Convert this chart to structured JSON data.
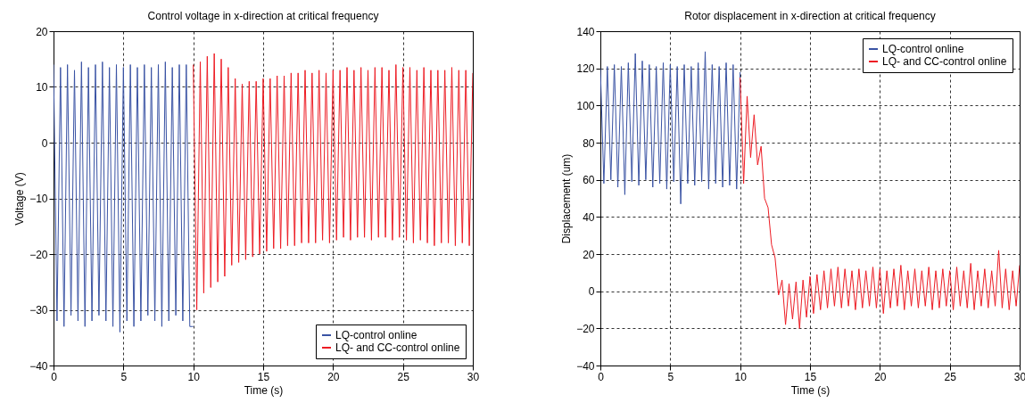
{
  "chart_data": [
    {
      "type": "line",
      "title": "Control voltage in x-direction at critical frequency",
      "xlabel": "Time (s)",
      "ylabel": "Voltage (V)",
      "xlim": [
        0,
        30
      ],
      "xticks": [
        0,
        5,
        10,
        15,
        20,
        25,
        30
      ],
      "ylim": [
        -40,
        20
      ],
      "yticks": [
        -40,
        -30,
        -20,
        -10,
        0,
        10,
        20
      ],
      "grid": true,
      "legend": "bottom right",
      "series": [
        {
          "name": "LQ-control online",
          "color": "#3a53a4",
          "x": [
            0,
            0.25,
            0.5,
            0.75,
            1,
            1.25,
            1.5,
            1.75,
            2,
            2.25,
            2.5,
            2.75,
            3,
            3.25,
            3.5,
            3.75,
            4,
            4.25,
            4.5,
            4.75,
            5,
            5.25,
            5.5,
            5.75,
            6,
            6.25,
            6.5,
            6.75,
            7,
            7.25,
            7.5,
            7.75,
            8,
            8.25,
            8.5,
            8.75,
            9,
            9.25,
            9.5,
            9.75,
            10
          ],
          "values": [
            14,
            -32,
            13.5,
            -33,
            14,
            -31,
            13,
            -32,
            14.5,
            -33,
            13.5,
            -32,
            14,
            -31,
            14.5,
            -32,
            13.5,
            -33,
            14,
            -34,
            13.5,
            -32,
            14,
            -33,
            13.5,
            -32,
            14,
            -31,
            13.5,
            -32,
            14,
            -33,
            14.5,
            -32,
            13.5,
            -31,
            14,
            -32,
            14,
            -33,
            -33
          ]
        },
        {
          "name": "LQ- and CC-control online",
          "color": "#ed1c24",
          "x": [
            10,
            10.25,
            10.5,
            10.75,
            11,
            11.25,
            11.5,
            11.75,
            12,
            12.25,
            12.5,
            12.75,
            13,
            13.25,
            13.5,
            13.75,
            14,
            14.25,
            14.5,
            14.75,
            15,
            15.25,
            15.5,
            15.75,
            16,
            16.25,
            16.5,
            16.75,
            17,
            17.25,
            17.5,
            17.75,
            18,
            18.25,
            18.5,
            18.75,
            19,
            19.25,
            19.5,
            19.75,
            20,
            20.25,
            20.5,
            20.75,
            21,
            21.25,
            21.5,
            21.75,
            22,
            22.25,
            22.5,
            22.75,
            23,
            23.25,
            23.5,
            23.75,
            24,
            24.25,
            24.5,
            24.75,
            25,
            25.25,
            25.5,
            25.75,
            26,
            26.25,
            26.5,
            26.75,
            27,
            27.25,
            27.5,
            27.75,
            28,
            28.25,
            28.5,
            28.75,
            29,
            29.25,
            29.5,
            29.75,
            30
          ],
          "values": [
            14,
            -30,
            14.5,
            -27,
            15.5,
            -26,
            16,
            -25,
            15,
            -24,
            13.5,
            -22,
            11.5,
            -21.5,
            10.5,
            -21,
            11,
            -20.5,
            11,
            -20,
            11.5,
            -19.5,
            11.5,
            -19,
            12,
            -19,
            12,
            -18.5,
            12.5,
            -18.5,
            12.5,
            -18,
            13,
            -18,
            12.5,
            -18,
            13,
            -17.5,
            12.5,
            -18,
            13,
            -17.5,
            13,
            -17,
            13.5,
            -17.5,
            13,
            -17,
            13.5,
            -17,
            13,
            -17.5,
            13.5,
            -17,
            13.5,
            -17,
            13,
            -17.5,
            14,
            -17,
            13.5,
            -17.5,
            13.5,
            -18,
            13,
            -17.5,
            13.5,
            -18,
            13,
            -18.5,
            13,
            -18,
            13,
            -18,
            13.5,
            -18.5,
            13,
            -18,
            13,
            -18.5,
            12.5
          ]
        }
      ]
    },
    {
      "type": "line",
      "title": "Rotor displacement in x-direction at critical frequency",
      "xlabel": "Time (s)",
      "ylabel": "Displacement (um)",
      "xlim": [
        0,
        30
      ],
      "xticks": [
        0,
        5,
        10,
        15,
        20,
        25,
        30
      ],
      "ylim": [
        -40,
        140
      ],
      "yticks": [
        -40,
        -20,
        0,
        20,
        40,
        60,
        80,
        100,
        120,
        140
      ],
      "grid": true,
      "legend": "top right",
      "series": [
        {
          "name": "LQ-control online",
          "color": "#3a53a4",
          "x": [
            0,
            0.25,
            0.5,
            0.75,
            1,
            1.25,
            1.5,
            1.75,
            2,
            2.25,
            2.5,
            2.75,
            3,
            3.25,
            3.5,
            3.75,
            4,
            4.25,
            4.5,
            4.75,
            5,
            5.25,
            5.5,
            5.75,
            6,
            6.25,
            6.5,
            6.75,
            7,
            7.25,
            7.5,
            7.75,
            8,
            8.25,
            8.5,
            8.75,
            9,
            9.25,
            9.5,
            9.75,
            10
          ],
          "values": [
            120,
            58,
            121,
            60,
            122,
            56,
            121,
            52,
            123,
            59,
            128,
            57,
            124,
            60,
            122,
            56,
            121,
            58,
            123,
            55,
            122,
            59,
            121,
            47,
            122,
            58,
            121,
            57,
            123,
            59,
            129,
            55,
            122,
            58,
            121,
            56,
            123,
            57,
            122,
            55,
            118
          ]
        },
        {
          "name": "LQ- and CC-control online",
          "color": "#ed1c24",
          "x": [
            10,
            10.25,
            10.5,
            10.75,
            11,
            11.25,
            11.5,
            11.75,
            12,
            12.25,
            12.5,
            12.75,
            13,
            13.25,
            13.5,
            13.75,
            14,
            14.25,
            14.5,
            14.75,
            15,
            15.25,
            15.5,
            15.75,
            16,
            16.25,
            16.5,
            16.75,
            17,
            17.25,
            17.5,
            17.75,
            18,
            18.25,
            18.5,
            18.75,
            19,
            19.25,
            19.5,
            19.75,
            20,
            20.25,
            20.5,
            20.75,
            21,
            21.25,
            21.5,
            21.75,
            22,
            22.25,
            22.5,
            22.75,
            23,
            23.25,
            23.5,
            23.75,
            24,
            24.25,
            24.5,
            24.75,
            25,
            25.25,
            25.5,
            25.75,
            26,
            26.25,
            26.5,
            26.75,
            27,
            27.25,
            27.5,
            27.75,
            28,
            28.25,
            28.5,
            28.75,
            29,
            29.25,
            29.5,
            29.75,
            30
          ],
          "values": [
            115,
            58,
            105,
            72,
            95,
            68,
            78,
            50,
            45,
            25,
            18,
            -2,
            6,
            -18,
            4,
            -15,
            5,
            -20,
            6,
            -14,
            8,
            -12,
            9,
            -10,
            11,
            -9,
            12,
            -8,
            13,
            -9,
            12,
            -8,
            11,
            -10,
            12,
            -9,
            11,
            -8,
            13,
            -9,
            12,
            -12,
            11,
            -9,
            12,
            -8,
            14,
            -10,
            11,
            -8,
            12,
            -9,
            11,
            -8,
            13,
            -10,
            11,
            -9,
            12,
            -8,
            11,
            -10,
            13,
            -8,
            11,
            -9,
            15,
            -10,
            11,
            -8,
            12,
            -9,
            11,
            -8,
            22,
            -9,
            12,
            -10,
            11,
            -8,
            14
          ]
        }
      ]
    }
  ]
}
